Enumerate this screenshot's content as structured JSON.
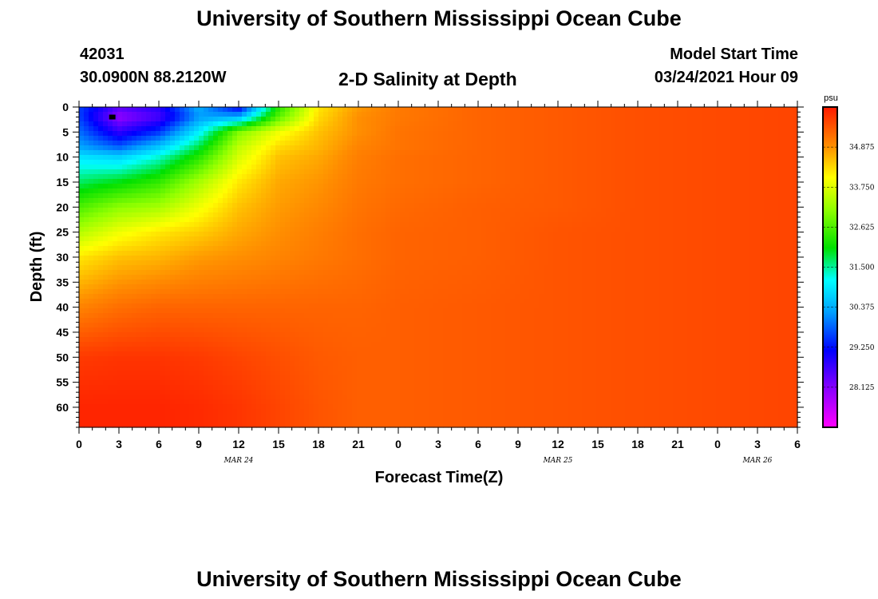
{
  "header": {
    "top_title": "University of Southern Mississippi Ocean Cube",
    "station_id": "42031",
    "location": "30.0900N 88.2120W",
    "chart_title": "2-D Salinity at Depth",
    "model_start_label": "Model Start Time",
    "model_start_value": "03/24/2021 Hour 09"
  },
  "footer": {
    "bottom_title": "University of Southern Mississippi Ocean Cube"
  },
  "chart_data": {
    "type": "heatmap",
    "title": "2-D Salinity at Depth",
    "xlabel": "Forecast Time(Z)",
    "ylabel": "Depth (ft)",
    "x_range_hours": [
      0,
      54
    ],
    "y_range_ft": [
      0,
      64
    ],
    "x_ticks": [
      "0",
      "3",
      "6",
      "9",
      "12",
      "15",
      "18",
      "21",
      "0",
      "3",
      "6",
      "9",
      "12",
      "15",
      "18",
      "21",
      "0",
      "3",
      "6"
    ],
    "y_ticks": [
      "0",
      "5",
      "10",
      "15",
      "20",
      "25",
      "30",
      "35",
      "40",
      "45",
      "50",
      "55",
      "60"
    ],
    "date_labels": [
      {
        "label": "MAR 24",
        "hour": 12
      },
      {
        "label": "MAR 25",
        "hour": 36
      },
      {
        "label": "MAR 26",
        "hour": 51
      }
    ],
    "colorbar": {
      "unit": "psu",
      "range": [
        27.0,
        36.0
      ],
      "ticks": [
        "34.875",
        "33.750",
        "32.625",
        "31.500",
        "30.375",
        "29.250",
        "28.125"
      ]
    },
    "depth_levels_ft": [
      0,
      2,
      5,
      8,
      10,
      15,
      20,
      25,
      30,
      40,
      50,
      60
    ],
    "time_points_hours": [
      0,
      3,
      6,
      9,
      12,
      15,
      18,
      21,
      24,
      30,
      36,
      42,
      48,
      54
    ],
    "salinity_psu": [
      [
        29.6,
        28.5,
        28.9,
        30.4,
        29.0,
        32.3,
        34.2,
        34.8,
        35.1,
        35.3,
        35.4,
        35.5,
        35.55,
        35.6
      ],
      [
        29.6,
        28.0,
        28.6,
        30.2,
        30.4,
        32.7,
        34.3,
        34.9,
        35.1,
        35.3,
        35.4,
        35.5,
        35.55,
        35.6
      ],
      [
        29.9,
        28.8,
        29.5,
        31.0,
        33.0,
        33.9,
        34.5,
        34.9,
        35.15,
        35.3,
        35.4,
        35.5,
        35.55,
        35.6
      ],
      [
        30.3,
        29.8,
        30.6,
        31.8,
        33.5,
        34.3,
        34.6,
        35.0,
        35.15,
        35.3,
        35.4,
        35.5,
        35.55,
        35.6
      ],
      [
        30.9,
        30.7,
        31.3,
        32.3,
        33.7,
        34.5,
        34.7,
        35.05,
        35.2,
        35.3,
        35.4,
        35.5,
        35.55,
        35.6
      ],
      [
        31.7,
        32.0,
        32.4,
        33.3,
        34.2,
        34.7,
        34.85,
        35.1,
        35.2,
        35.3,
        35.4,
        35.5,
        35.55,
        35.6
      ],
      [
        32.6,
        33.1,
        33.3,
        33.9,
        34.5,
        34.8,
        34.95,
        35.15,
        35.25,
        35.35,
        35.4,
        35.5,
        35.55,
        35.6
      ],
      [
        33.4,
        33.9,
        34.2,
        34.4,
        34.7,
        34.9,
        35.05,
        35.2,
        35.3,
        35.35,
        35.45,
        35.5,
        35.55,
        35.6
      ],
      [
        34.2,
        34.5,
        34.6,
        34.8,
        34.9,
        35.0,
        35.1,
        35.2,
        35.3,
        35.35,
        35.45,
        35.5,
        35.55,
        35.6
      ],
      [
        35.0,
        35.2,
        35.3,
        35.3,
        35.3,
        35.3,
        35.3,
        35.3,
        35.35,
        35.4,
        35.45,
        35.5,
        35.55,
        35.6
      ],
      [
        35.7,
        35.75,
        35.75,
        35.7,
        35.6,
        35.5,
        35.4,
        35.35,
        35.35,
        35.4,
        35.45,
        35.5,
        35.55,
        35.6
      ],
      [
        35.9,
        35.9,
        35.9,
        35.85,
        35.75,
        35.6,
        35.45,
        35.35,
        35.35,
        35.4,
        35.45,
        35.5,
        35.55,
        35.6
      ]
    ],
    "marker": {
      "hour": 2.5,
      "depth_ft": 2,
      "shape": "square"
    }
  }
}
